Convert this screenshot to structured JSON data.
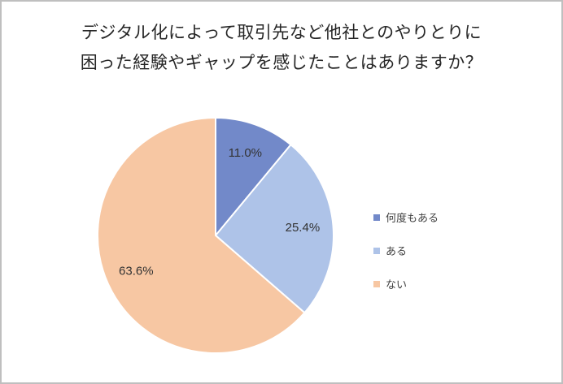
{
  "chart_data": {
    "type": "pie",
    "title": "デジタル化によって取引先など他社とのやりとりに困った経験やギャップを感じたことはありますか？",
    "title_lines": [
      "デジタル化によって取引先など他社とのやりとりに",
      "困った経験やギャップを感じたことはありますか？"
    ],
    "slices": [
      {
        "label": "何度もある",
        "value": 11.0,
        "display": "11.0%",
        "color": "#7289c9"
      },
      {
        "label": "ある",
        "value": 25.4,
        "display": "25.4%",
        "color": "#aec3e8"
      },
      {
        "label": "ない",
        "value": 63.6,
        "display": "63.6%",
        "color": "#f7c7a3"
      }
    ],
    "start_angle_deg": 0,
    "direction": "clockwise",
    "legend_position": "right",
    "slice_border_color": "#ffffff",
    "frame_border_color": "#bfbfbf",
    "background_color": "#ffffff"
  }
}
